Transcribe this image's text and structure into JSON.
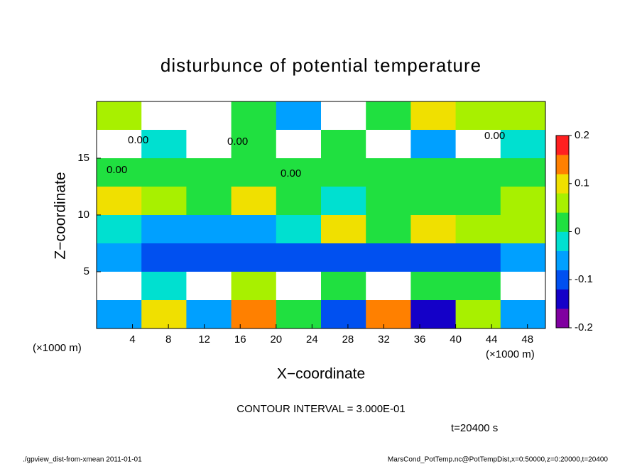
{
  "chart_data": {
    "type": "heatmap",
    "title": "disturbunce of potential temperature",
    "x_label": "X−coordinate",
    "y_label": "Z−coordinate",
    "x_unit": "(×1000 m)",
    "y_unit": "(×1000 m)",
    "xlim": [
      0,
      50
    ],
    "xticks": [
      4,
      8,
      12,
      16,
      20,
      24,
      28,
      32,
      36,
      40,
      44,
      48
    ],
    "ylim": [
      0,
      20
    ],
    "yticks": [
      5,
      10,
      15
    ],
    "x": [
      2.5,
      7.5,
      12.5,
      17.5,
      22.5,
      27.5,
      32.5,
      37.5,
      42.5,
      47.5
    ],
    "y": [
      18.75,
      16.25,
      13.75,
      11.25,
      8.75,
      6.25,
      3.75,
      1.25
    ],
    "z": [
      [
        0.05,
        0.3,
        0.3,
        0.02,
        -0.05,
        -0.3,
        0.03,
        0.08,
        0.05,
        0.04
      ],
      [
        0.3,
        -0.02,
        0.3,
        0.0,
        0.3,
        0.0,
        0.3,
        -0.05,
        0.3,
        -0.02
      ],
      [
        0.02,
        0.03,
        0.01,
        0.0,
        0.01,
        0.0,
        0.0,
        0.0,
        0.01,
        0.0
      ],
      [
        0.12,
        0.05,
        0.02,
        0.09,
        0.0,
        -0.01,
        0.0,
        0.0,
        0.0,
        0.06
      ],
      [
        -0.03,
        -0.04,
        -0.04,
        -0.05,
        -0.02,
        0.08,
        0.03,
        0.1,
        0.06,
        0.04
      ],
      [
        -0.08,
        -0.1,
        -0.1,
        -0.11,
        -0.1,
        -0.09,
        -0.1,
        -0.1,
        -0.09,
        -0.08
      ],
      [
        0.3,
        -0.02,
        0.3,
        0.05,
        0.3,
        0.02,
        -0.3,
        0.02,
        0.03,
        0.3
      ],
      [
        -0.05,
        0.12,
        -0.08,
        0.15,
        0.01,
        -0.1,
        0.14,
        -0.15,
        0.04,
        -0.06
      ]
    ],
    "clim": [
      -0.2,
      0.2
    ],
    "colors": [
      "#8000a0",
      "#1400c8",
      "#0050f0",
      "#00a0ff",
      "#00e0d0",
      "#20e040",
      "#a8f000",
      "#f0e000",
      "#ff8000",
      "#ff2020"
    ],
    "out_of_range_color": "#ffffff",
    "colorbar_ticks": [
      0.2,
      0.1,
      0,
      -0.1,
      -0.2
    ],
    "contour_labels": [
      "0.00",
      "0.00",
      "0.00",
      "0.00",
      "0.00"
    ],
    "contour_interval": "CONTOUR INTERVAL = 3.000E-01",
    "time_label": "t=20400 s",
    "footer_left": "./gpview_dist-from-xmean   2011-01-01",
    "footer_right": "MarsCond_PotTemp.nc@PotTempDist,x=0:50000,z=0:20000,t=20400"
  }
}
